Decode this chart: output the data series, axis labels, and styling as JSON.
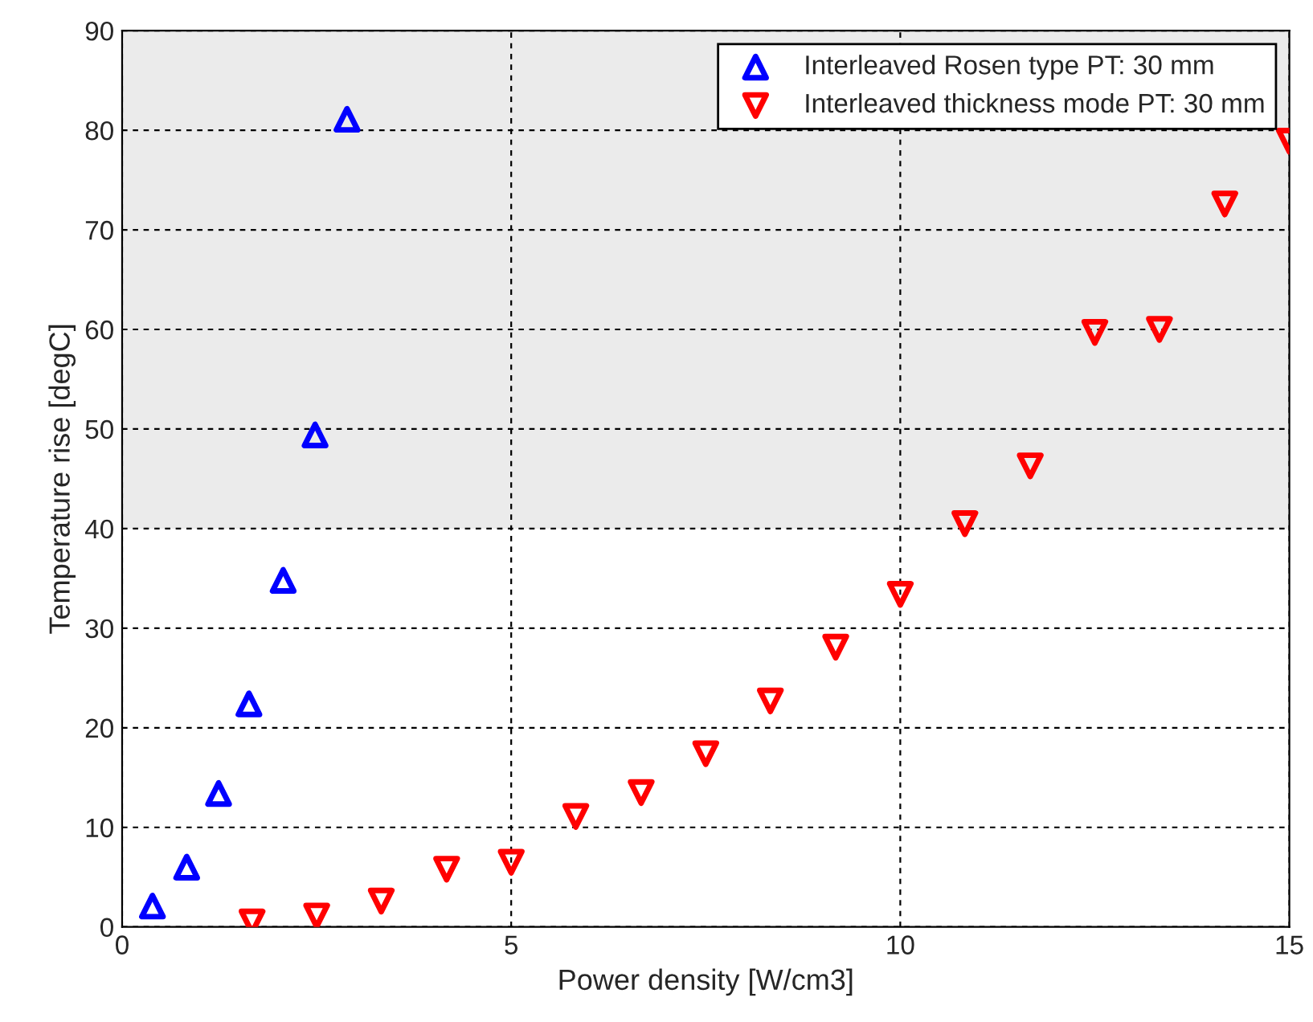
{
  "chart_data": {
    "type": "scatter",
    "xlabel": "Power density [W/cm3]",
    "ylabel": "Temperature rise [degC]",
    "xlim": [
      0,
      15
    ],
    "xticks": [
      0,
      5,
      10,
      15
    ],
    "ylim": [
      0,
      90
    ],
    "yticks": [
      0,
      10,
      20,
      30,
      40,
      50,
      60,
      70,
      80,
      90
    ],
    "grid": true,
    "legend": "top right",
    "bands": [
      {
        "axis": "y",
        "from": 40,
        "to": 90,
        "color": "#ebebeb"
      }
    ],
    "series": [
      {
        "name": "Interleaved Rosen type PT: 30 mm",
        "color": "#0000ff",
        "marker": "triangle",
        "x": [
          0.39,
          0.83,
          1.24,
          1.63,
          2.07,
          2.48,
          2.89
        ],
        "values": [
          2.1,
          6,
          13.4,
          22.4,
          34.8,
          49.4,
          81.1
        ]
      },
      {
        "name": "Interleaved thickness mode PT: 30 mm",
        "color": "#ff0000",
        "marker": "triangle_down",
        "x": [
          1.67,
          2.5,
          3.33,
          4.17,
          5,
          5.83,
          6.67,
          7.5,
          8.33,
          9.17,
          10,
          10.83,
          11.67,
          12.5,
          13.33,
          14.17,
          15
        ],
        "values": [
          0.5,
          1.1,
          2.6,
          5.8,
          6.5,
          11.1,
          13.5,
          17.4,
          22.7,
          28.1,
          33.4,
          40.5,
          46.3,
          59.7,
          60,
          72.6,
          78.9
        ]
      }
    ]
  }
}
